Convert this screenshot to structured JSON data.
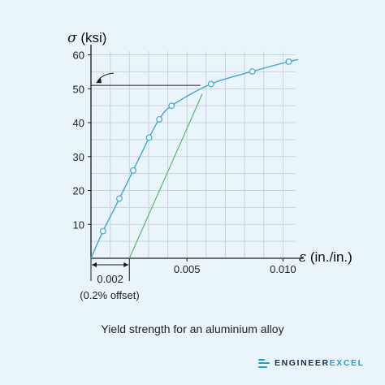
{
  "chart_data": {
    "type": "line",
    "caption": "Yield strength for an aluminium alloy",
    "ylabel_symbol": "σ",
    "ylabel_unit": "(ksi)",
    "xlabel_symbol": "ε",
    "xlabel_unit": "(in./in.)",
    "xlim": [
      0,
      0.011
    ],
    "ylim": [
      0,
      63
    ],
    "grid": true,
    "y_ticks": [
      10,
      20,
      30,
      40,
      50,
      60
    ],
    "y_tick_labels": [
      "10",
      "20",
      "30",
      "40",
      "50",
      "60"
    ],
    "x_ticks": [
      0.005,
      0.01
    ],
    "x_tick_labels": [
      "0.005",
      "0.010"
    ],
    "offset_label": "0.002",
    "offset_note": "(0.2% offset)",
    "offset_strain": 0.002,
    "yield_strength": 51,
    "curve_points": [
      {
        "x": 0.0,
        "y": 0.0
      },
      {
        "x": 0.00063,
        "y": 8.0
      },
      {
        "x": 0.00148,
        "y": 17.6
      },
      {
        "x": 0.0022,
        "y": 25.9
      },
      {
        "x": 0.00303,
        "y": 35.6
      },
      {
        "x": 0.00356,
        "y": 41.0
      },
      {
        "x": 0.0042,
        "y": 45.0
      },
      {
        "x": 0.00625,
        "y": 51.4
      },
      {
        "x": 0.0084,
        "y": 55.1
      },
      {
        "x": 0.0103,
        "y": 58.0
      }
    ],
    "curve_end": {
      "x": 0.0108,
      "y": 58.6
    },
    "offset_line": {
      "start": {
        "x": 0.002,
        "y": 0
      },
      "end": {
        "x": 0.0058,
        "y": 48.5
      }
    },
    "colors": {
      "curve": "#39a7d9",
      "offset_line": "#5cb86a",
      "grid": "#c9d3da",
      "axis": "#1a1a1a",
      "marker_fill": "#ffffff"
    }
  },
  "brand": {
    "name_part1": "ENGINEER",
    "name_part2": "EXCEL",
    "color": "#1f9fd8"
  }
}
